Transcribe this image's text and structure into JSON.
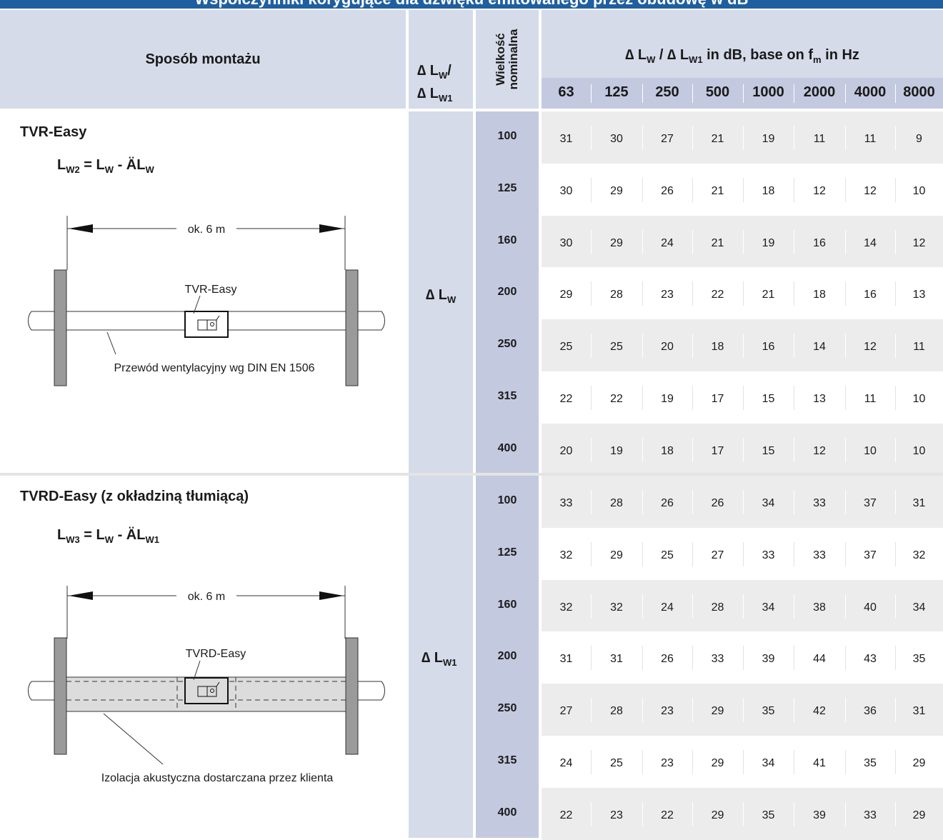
{
  "title": "Współczynniki korygujące dla dźwięku emitowanego przez obudowę w dB",
  "header": {
    "mounting": "Sposób montażu",
    "delta_top": "∆ L",
    "delta_top_sub": "W",
    "delta_top_slash": "/",
    "delta_bottom": "∆ L",
    "delta_bottom_sub": "W1",
    "nominal_size": "Wielkość nominalna",
    "freq_title_a": "∆ L",
    "freq_title_a_sub": "W",
    "freq_title_b": " / ∆ L",
    "freq_title_b_sub": "W1",
    "freq_title_c": " in dB, base on f",
    "freq_title_c_sub": "m",
    "freq_title_d": " in Hz",
    "frequencies": [
      "63",
      "125",
      "250",
      "500",
      "1000",
      "2000",
      "4000",
      "8000"
    ]
  },
  "sections": [
    {
      "name": "TVR-Easy",
      "formula_a": "L",
      "formula_a_sub": "W2",
      "formula_b": " = L",
      "formula_b_sub": "W",
      "formula_c": " - ÄL",
      "formula_c_sub": "W",
      "label": "∆ L",
      "label_sub": "W",
      "diagram": {
        "distance": "ok. 6 m",
        "device": "TVR-Easy",
        "note": "Przewód wentylacyjny wg DIN EN 1506",
        "insulated": false
      },
      "rows": [
        {
          "size": "100",
          "values": [
            "31",
            "30",
            "27",
            "21",
            "19",
            "11",
            "11",
            "9"
          ]
        },
        {
          "size": "125",
          "values": [
            "30",
            "29",
            "26",
            "21",
            "18",
            "12",
            "12",
            "10"
          ]
        },
        {
          "size": "160",
          "values": [
            "30",
            "29",
            "24",
            "21",
            "19",
            "16",
            "14",
            "12"
          ]
        },
        {
          "size": "200",
          "values": [
            "29",
            "28",
            "23",
            "22",
            "21",
            "18",
            "16",
            "13"
          ]
        },
        {
          "size": "250",
          "values": [
            "25",
            "25",
            "20",
            "18",
            "16",
            "14",
            "12",
            "11"
          ]
        },
        {
          "size": "315",
          "values": [
            "22",
            "22",
            "19",
            "17",
            "15",
            "13",
            "11",
            "10"
          ]
        },
        {
          "size": "400",
          "values": [
            "20",
            "19",
            "18",
            "17",
            "15",
            "12",
            "10",
            "10"
          ]
        }
      ]
    },
    {
      "name": "TVRD-Easy (z okładziną tłumiącą)",
      "formula_a": "L",
      "formula_a_sub": "W3",
      "formula_b": " = L",
      "formula_b_sub": "W",
      "formula_c": " - ÄL",
      "formula_c_sub": "W1",
      "label": "∆ L",
      "label_sub": "W1",
      "diagram": {
        "distance": "ok. 6 m",
        "device": "TVRD-Easy",
        "note": "Izolacja  akustyczna dostarczana przez klienta",
        "insulated": true
      },
      "rows": [
        {
          "size": "100",
          "values": [
            "33",
            "28",
            "26",
            "26",
            "34",
            "33",
            "37",
            "31"
          ]
        },
        {
          "size": "125",
          "values": [
            "32",
            "29",
            "25",
            "27",
            "33",
            "33",
            "37",
            "32"
          ]
        },
        {
          "size": "160",
          "values": [
            "32",
            "32",
            "24",
            "28",
            "34",
            "38",
            "40",
            "34"
          ]
        },
        {
          "size": "200",
          "values": [
            "31",
            "31",
            "26",
            "33",
            "39",
            "44",
            "43",
            "35"
          ]
        },
        {
          "size": "250",
          "values": [
            "27",
            "28",
            "23",
            "29",
            "35",
            "42",
            "36",
            "31"
          ]
        },
        {
          "size": "315",
          "values": [
            "24",
            "25",
            "23",
            "29",
            "34",
            "41",
            "35",
            "29"
          ]
        },
        {
          "size": "400",
          "values": [
            "22",
            "23",
            "22",
            "29",
            "35",
            "39",
            "33",
            "29"
          ]
        }
      ]
    }
  ]
}
